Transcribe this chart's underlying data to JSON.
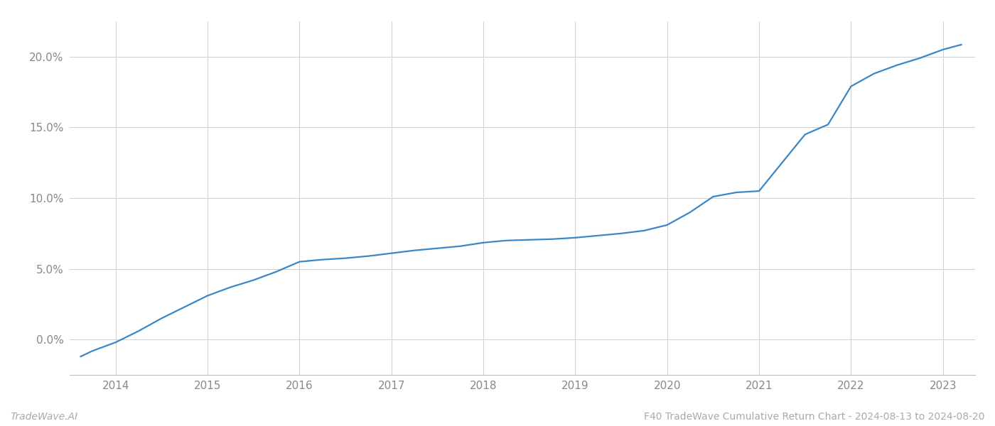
{
  "title": "F40 TradeWave Cumulative Return Chart - 2024-08-13 to 2024-08-20",
  "watermark": "TradeWave.AI",
  "line_color": "#3a87c8",
  "background_color": "#ffffff",
  "grid_color": "#d0d0d0",
  "x_values": [
    2013.62,
    2013.75,
    2014.0,
    2014.25,
    2014.5,
    2014.75,
    2015.0,
    2015.25,
    2015.5,
    2015.75,
    2016.0,
    2016.25,
    2016.5,
    2016.75,
    2017.0,
    2017.25,
    2017.5,
    2017.75,
    2018.0,
    2018.25,
    2018.5,
    2018.75,
    2019.0,
    2019.25,
    2019.5,
    2019.75,
    2020.0,
    2020.25,
    2020.5,
    2020.75,
    2021.0,
    2021.25,
    2021.5,
    2021.75,
    2022.0,
    2022.25,
    2022.5,
    2022.75,
    2023.0,
    2023.2
  ],
  "y_values": [
    -1.2,
    -0.8,
    -0.2,
    0.6,
    1.5,
    2.3,
    3.1,
    3.7,
    4.2,
    4.8,
    5.5,
    5.65,
    5.75,
    5.9,
    6.1,
    6.3,
    6.45,
    6.6,
    6.85,
    7.0,
    7.05,
    7.1,
    7.2,
    7.35,
    7.5,
    7.7,
    8.1,
    9.0,
    10.1,
    10.4,
    10.5,
    12.5,
    14.5,
    15.2,
    17.9,
    18.8,
    19.4,
    19.9,
    20.5,
    20.85
  ],
  "xlim": [
    2013.5,
    2023.35
  ],
  "ylim": [
    -2.5,
    22.5
  ],
  "xticks": [
    2014,
    2015,
    2016,
    2017,
    2018,
    2019,
    2020,
    2021,
    2022,
    2023
  ],
  "yticks": [
    0.0,
    5.0,
    10.0,
    15.0,
    20.0
  ],
  "ytick_labels": [
    "0.0%",
    "5.0%",
    "10.0%",
    "15.0%",
    "20.0%"
  ],
  "line_width": 1.6,
  "figsize": [
    14.0,
    6.0
  ],
  "dpi": 100
}
